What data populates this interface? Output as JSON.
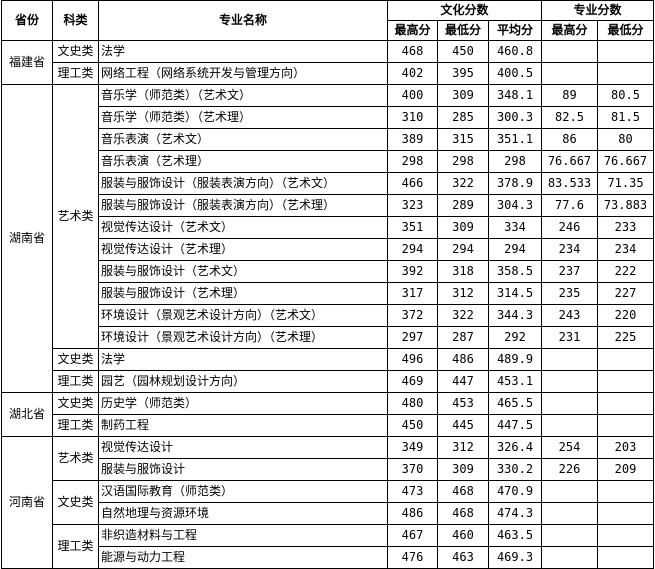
{
  "header": {
    "province": "省份",
    "category": "科类",
    "major": "专业名称",
    "culture_group": "文化分数",
    "major_group": "专业分数",
    "max": "最高分",
    "min": "最低分",
    "avg": "平均分",
    "major_max": "最高分",
    "major_min": "最低分"
  },
  "provinces": [
    {
      "name": "福建省",
      "categories": [
        {
          "name": "文史类",
          "rows": [
            [
              "法学",
              "468",
              "450",
              "460.8",
              "",
              ""
            ]
          ]
        },
        {
          "name": "理工类",
          "rows": [
            [
              "网络工程（网络系统开发与管理方向）",
              "402",
              "395",
              "400.5",
              "",
              ""
            ]
          ]
        }
      ]
    },
    {
      "name": "湖南省",
      "categories": [
        {
          "name": "",
          "rows": [
            [
              "音乐学（师范类）（艺术文）",
              "400",
              "309",
              "348.1",
              "89",
              "80.5"
            ],
            [
              "音乐学（师范类）（艺术理）",
              "310",
              "285",
              "300.3",
              "82.5",
              "81.5"
            ],
            [
              "音乐表演（艺术文）",
              "389",
              "315",
              "351.1",
              "86",
              "80"
            ],
            [
              "音乐表演（艺术理）",
              "298",
              "298",
              "298",
              "76.667",
              "76.667"
            ]
          ]
        },
        {
          "name": "艺术类",
          "rows": [
            [
              "服装与服饰设计（服装表演方向）（艺术文）",
              "466",
              "322",
              "378.9",
              "83.533",
              "71.35"
            ],
            [
              "服装与服饰设计（服装表演方向）（艺术理）",
              "323",
              "289",
              "304.3",
              "77.6",
              "73.883"
            ],
            [
              "视觉传达设计（艺术文）",
              "351",
              "309",
              "334",
              "246",
              "233"
            ],
            [
              "视觉传达设计（艺术理）",
              "294",
              "294",
              "294",
              "234",
              "234"
            ],
            [
              "服装与服饰设计（艺术文）",
              "392",
              "318",
              "358.5",
              "237",
              "222"
            ],
            [
              "服装与服饰设计（艺术理）",
              "317",
              "312",
              "314.5",
              "235",
              "227"
            ],
            [
              "环境设计（景观艺术设计方向）（艺术文）",
              "372",
              "322",
              "344.3",
              "243",
              "220"
            ],
            [
              "环境设计（景观艺术设计方向）（艺术理）",
              "297",
              "287",
              "292",
              "231",
              "225"
            ]
          ]
        },
        {
          "name": "文史类",
          "rows": [
            [
              "法学",
              "496",
              "486",
              "489.9",
              "",
              ""
            ]
          ]
        },
        {
          "name": "理工类",
          "rows": [
            [
              "园艺（园林规划设计方向）",
              "469",
              "447",
              "453.1",
              "",
              ""
            ]
          ]
        }
      ]
    },
    {
      "name": "湖北省",
      "categories": [
        {
          "name": "文史类",
          "rows": [
            [
              "历史学（师范类）",
              "480",
              "453",
              "465.5",
              "",
              ""
            ]
          ]
        },
        {
          "name": "理工类",
          "rows": [
            [
              "制药工程",
              "450",
              "445",
              "447.5",
              "",
              ""
            ]
          ]
        }
      ]
    },
    {
      "name": "河南省",
      "categories": [
        {
          "name": "艺术类",
          "rows": [
            [
              "视觉传达设计",
              "349",
              "312",
              "326.4",
              "254",
              "203"
            ],
            [
              "服装与服饰设计",
              "370",
              "309",
              "330.2",
              "226",
              "209"
            ]
          ]
        },
        {
          "name": "文史类",
          "rows": [
            [
              "汉语国际教育（师范类）",
              "473",
              "468",
              "470.9",
              "",
              ""
            ],
            [
              "自然地理与资源环境",
              "486",
              "468",
              "474.3",
              "",
              ""
            ]
          ]
        },
        {
          "name": "理工类",
          "rows": [
            [
              "非织造材料与工程",
              "467",
              "460",
              "463.5",
              "",
              ""
            ],
            [
              "能源与动力工程",
              "476",
              "463",
              "469.3",
              "",
              ""
            ]
          ]
        }
      ]
    }
  ]
}
